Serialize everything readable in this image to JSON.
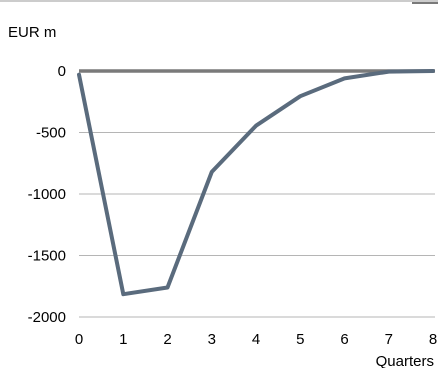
{
  "chart_data": {
    "type": "line",
    "title": "",
    "ylabel": "EUR m",
    "xlabel": "Quarters",
    "xlim": [
      0,
      8
    ],
    "ylim": [
      -2000,
      0
    ],
    "x_ticks": [
      "0",
      "1",
      "2",
      "3",
      "4",
      "5",
      "6",
      "7",
      "8"
    ],
    "y_ticks": [
      "0",
      "-500",
      "-1000",
      "-1500",
      "-2000"
    ],
    "grid": "horizontal",
    "legend": "none",
    "series": [
      {
        "color": "#5a6b7d",
        "x": [
          0,
          1,
          2,
          3,
          4,
          5,
          6,
          7,
          8
        ],
        "values": [
          -30,
          -1815,
          -1760,
          -820,
          -445,
          -205,
          -60,
          -5,
          0
        ]
      }
    ],
    "zero_line_color": "#7a7a7a",
    "grid_color": "#b5b5b5"
  }
}
